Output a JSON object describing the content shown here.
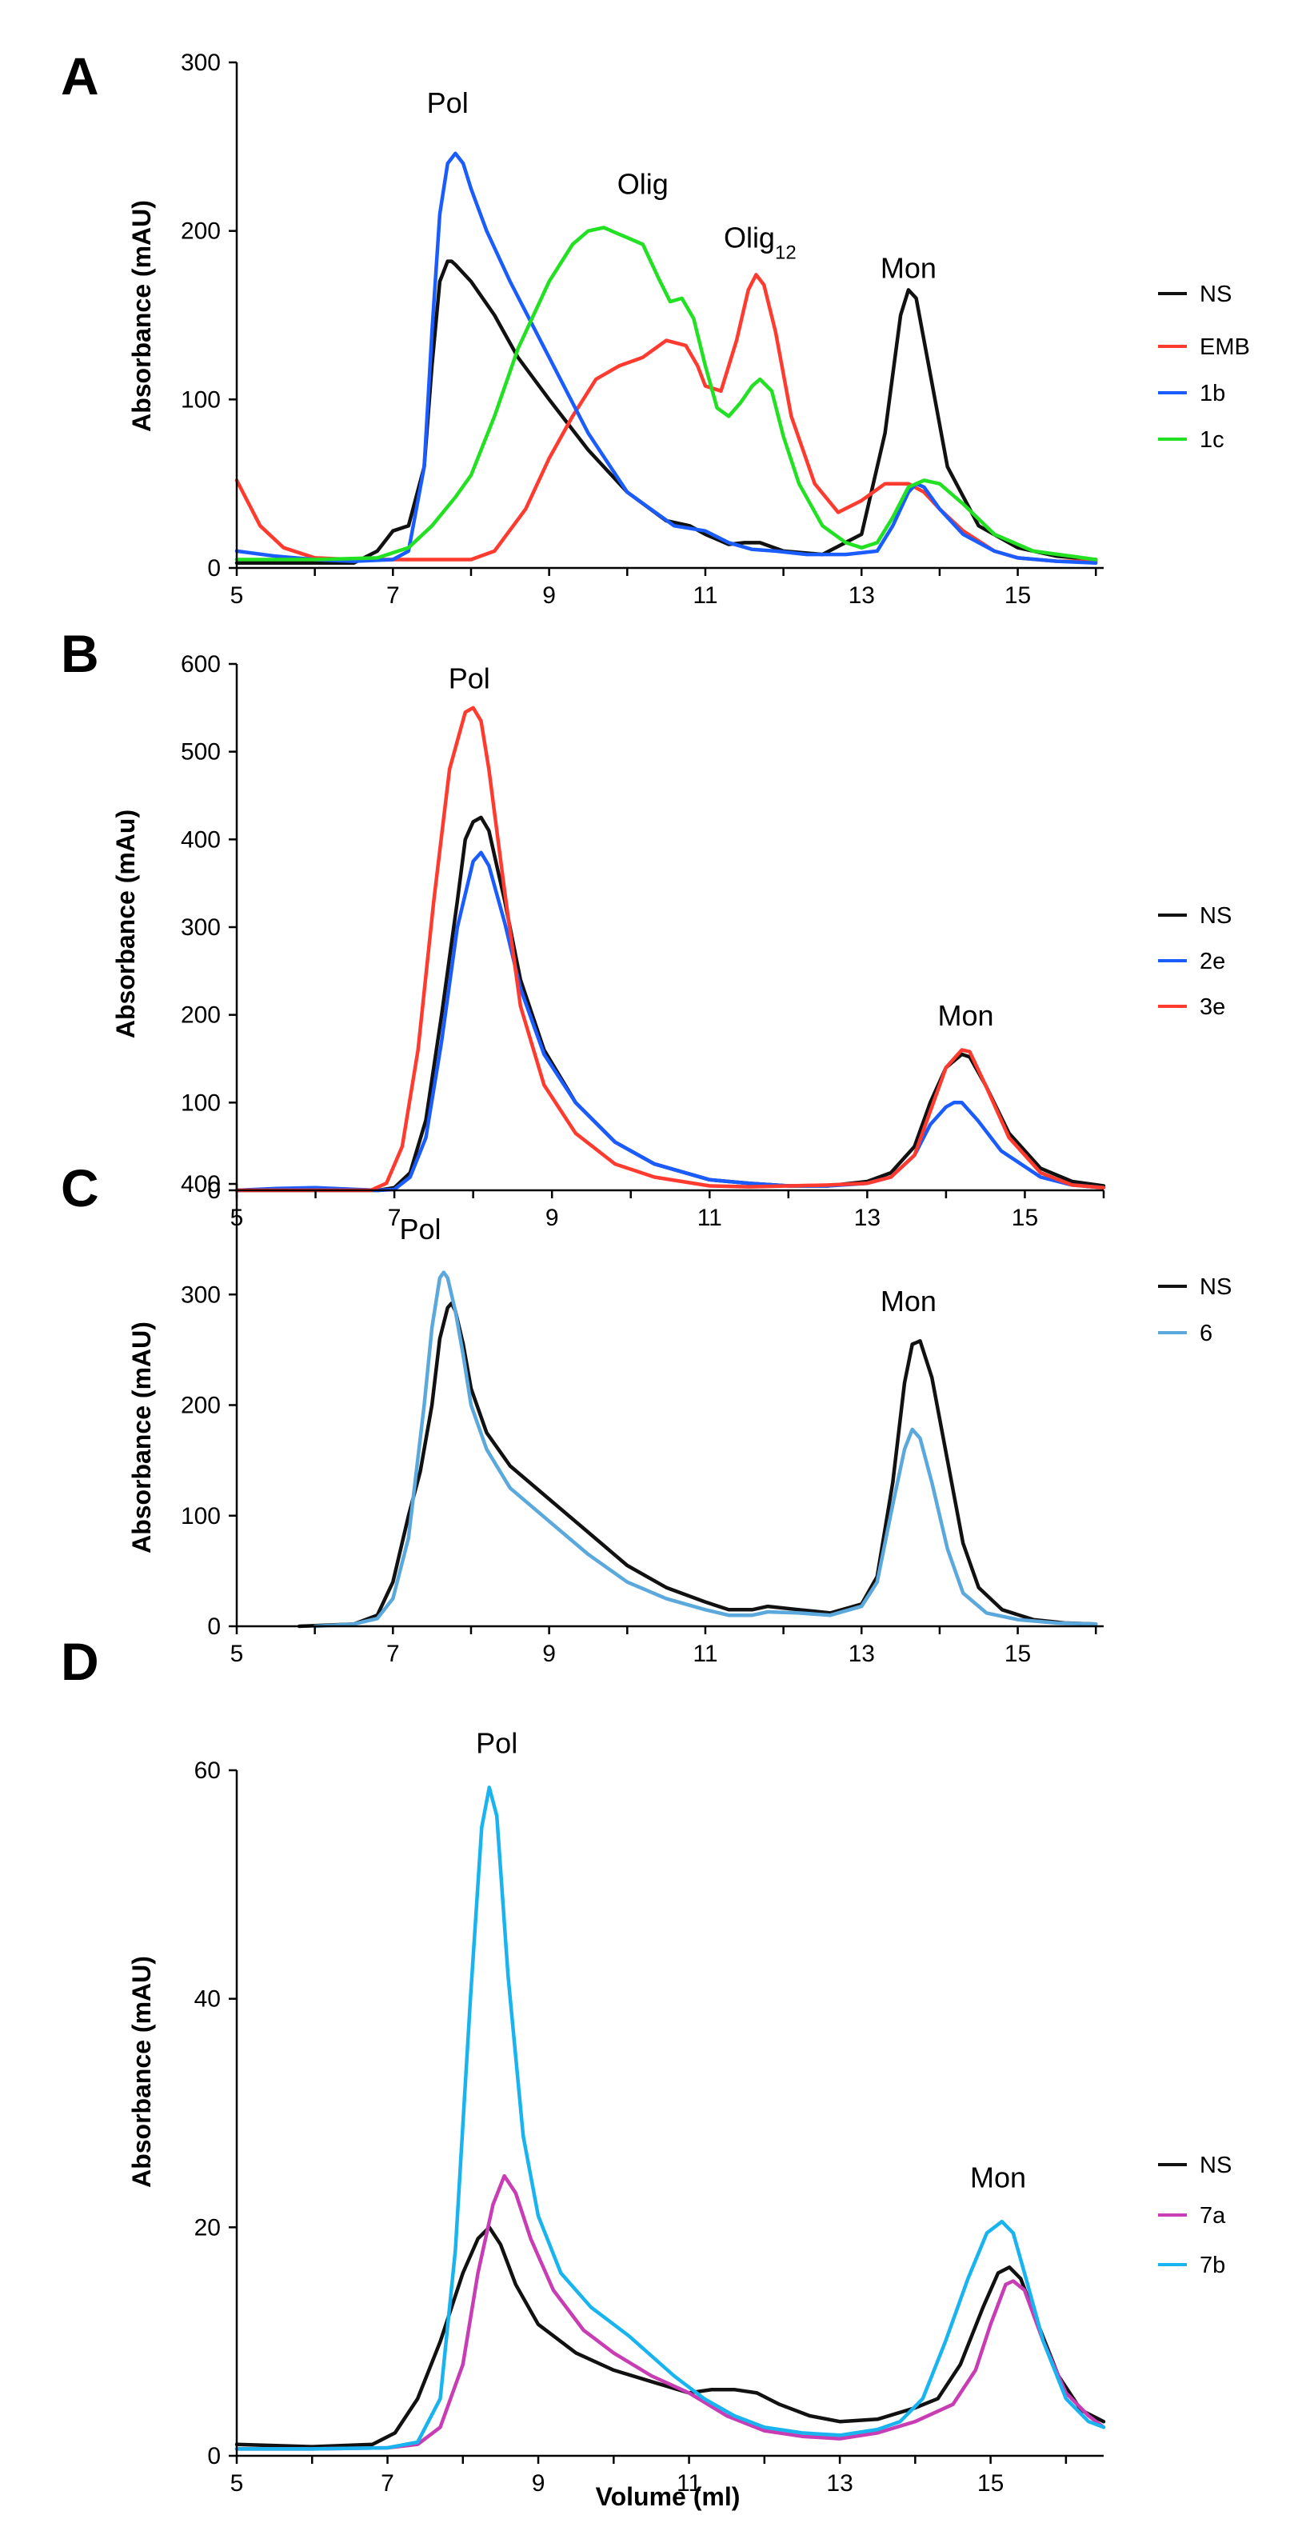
{
  "figure": {
    "xlabel": "Volume (ml)"
  },
  "colors": {
    "NS": "#111111",
    "EMB": "#ff3b2f",
    "1b": "#1b5cff",
    "1c": "#22e022",
    "2e": "#1b5cff",
    "3e": "#ff3b2f",
    "6": "#5ba8dc",
    "7a": "#c83cb4",
    "7b": "#19b4f0"
  },
  "chart_data": [
    {
      "panel": "A",
      "type": "line",
      "ylabel": "Absorbance (mAU)",
      "xlim": [
        5,
        16.1
      ],
      "ylim": [
        0,
        300
      ],
      "xticks": [
        5,
        7,
        9,
        11,
        13,
        15
      ],
      "yticks": [
        0,
        100,
        200,
        300
      ],
      "annotations": [
        {
          "text": "Pol",
          "x": 7.7,
          "y": 270
        },
        {
          "text": "Olig",
          "x": 10.2,
          "y": 222
        },
        {
          "text": "Olig",
          "sub": "12",
          "x": 11.7,
          "y": 190
        },
        {
          "text": "Mon",
          "x": 13.6,
          "y": 172
        }
      ],
      "series": [
        {
          "name": "NS",
          "x": [
            5,
            6,
            6.5,
            6.8,
            7.0,
            7.2,
            7.4,
            7.5,
            7.6,
            7.7,
            7.75,
            7.8,
            8.0,
            8.3,
            8.6,
            9.0,
            9.5,
            10.0,
            10.5,
            10.8,
            11.0,
            11.3,
            11.5,
            11.7,
            12.0,
            12.5,
            13.0,
            13.3,
            13.5,
            13.6,
            13.7,
            13.9,
            14.1,
            14.5,
            15,
            15.5,
            16
          ],
          "y": [
            3,
            3,
            3,
            10,
            22,
            25,
            60,
            120,
            170,
            182,
            182,
            180,
            170,
            150,
            125,
            100,
            70,
            45,
            28,
            25,
            20,
            14,
            15,
            15,
            10,
            8,
            20,
            80,
            150,
            165,
            160,
            110,
            60,
            25,
            12,
            7,
            5
          ]
        },
        {
          "name": "EMB",
          "x": [
            5,
            5.3,
            5.6,
            6,
            6.5,
            7,
            7.5,
            8,
            8.3,
            8.7,
            9,
            9.3,
            9.6,
            9.9,
            10.2,
            10.5,
            10.75,
            10.9,
            11.0,
            11.2,
            11.4,
            11.55,
            11.65,
            11.75,
            11.9,
            12.1,
            12.4,
            12.7,
            13,
            13.3,
            13.6,
            13.8,
            14,
            14.3,
            14.7,
            15,
            15.5,
            16
          ],
          "y": [
            52,
            25,
            12,
            6,
            5,
            5,
            5,
            5,
            10,
            35,
            65,
            90,
            112,
            120,
            125,
            135,
            132,
            120,
            108,
            105,
            135,
            165,
            174,
            168,
            140,
            90,
            50,
            33,
            40,
            50,
            50,
            45,
            35,
            22,
            10,
            6,
            4,
            4
          ]
        },
        {
          "name": "1b",
          "x": [
            5,
            5.5,
            6,
            6.5,
            7,
            7.2,
            7.4,
            7.5,
            7.6,
            7.7,
            7.8,
            7.9,
            8.0,
            8.2,
            8.5,
            9,
            9.5,
            10,
            10.3,
            10.6,
            11,
            11.3,
            11.6,
            11.9,
            12.3,
            12.8,
            13.2,
            13.4,
            13.6,
            13.7,
            13.8,
            14,
            14.3,
            14.7,
            15,
            15.5,
            16
          ],
          "y": [
            10,
            7,
            5,
            4,
            5,
            10,
            60,
            140,
            210,
            240,
            246,
            240,
            225,
            200,
            170,
            125,
            80,
            45,
            35,
            25,
            22,
            15,
            11,
            10,
            8,
            8,
            10,
            25,
            45,
            50,
            48,
            35,
            20,
            10,
            6,
            4,
            3
          ]
        },
        {
          "name": "1c",
          "x": [
            5,
            6,
            6.8,
            7.2,
            7.5,
            7.8,
            8.0,
            8.3,
            8.6,
            9.0,
            9.3,
            9.5,
            9.7,
            9.9,
            10.0,
            10.2,
            10.4,
            10.55,
            10.7,
            10.85,
            11.0,
            11.15,
            11.3,
            11.45,
            11.6,
            11.7,
            11.85,
            12.0,
            12.2,
            12.5,
            12.8,
            13.0,
            13.2,
            13.4,
            13.6,
            13.8,
            14.0,
            14.3,
            14.7,
            15.2,
            16
          ],
          "y": [
            5,
            5,
            6,
            12,
            25,
            42,
            55,
            90,
            130,
            170,
            192,
            200,
            202,
            198,
            196,
            192,
            172,
            158,
            160,
            148,
            120,
            95,
            90,
            98,
            108,
            112,
            105,
            78,
            50,
            25,
            15,
            12,
            15,
            30,
            48,
            52,
            50,
            38,
            20,
            10,
            5
          ]
        }
      ]
    },
    {
      "panel": "B",
      "type": "line",
      "ylabel": "Absorbance (mAu)",
      "xlim": [
        5,
        16
      ],
      "ylim": [
        0,
        600
      ],
      "xticks": [
        5,
        7,
        9,
        11,
        13,
        15
      ],
      "yticks": [
        0,
        100,
        200,
        300,
        400,
        500,
        600
      ],
      "annotations": [
        {
          "text": "Pol",
          "x": 7.95,
          "y": 572
        },
        {
          "text": "Mon",
          "x": 14.25,
          "y": 188
        }
      ],
      "series": [
        {
          "name": "NS",
          "x": [
            5,
            6.8,
            7.0,
            7.2,
            7.4,
            7.6,
            7.8,
            7.9,
            8.0,
            8.1,
            8.2,
            8.4,
            8.6,
            8.9,
            9.3,
            9.8,
            10.3,
            11,
            11.5,
            12,
            12.5,
            13,
            13.3,
            13.6,
            13.8,
            14.0,
            14.2,
            14.3,
            14.5,
            14.8,
            15.2,
            15.6,
            16
          ],
          "y": [
            0,
            0,
            3,
            20,
            80,
            200,
            330,
            400,
            420,
            425,
            410,
            330,
            240,
            160,
            100,
            55,
            30,
            12,
            8,
            5,
            5,
            10,
            20,
            50,
            100,
            140,
            155,
            152,
            120,
            65,
            25,
            10,
            5
          ]
        },
        {
          "name": "2e",
          "x": [
            5,
            5.5,
            6,
            6.5,
            6.8,
            7.0,
            7.2,
            7.4,
            7.6,
            7.8,
            8.0,
            8.1,
            8.2,
            8.4,
            8.6,
            8.9,
            9.3,
            9.8,
            10.3,
            11,
            11.5,
            12,
            12.5,
            13,
            13.3,
            13.6,
            13.8,
            14.0,
            14.1,
            14.2,
            14.4,
            14.7,
            15.2,
            15.6,
            16
          ],
          "y": [
            0,
            2,
            3,
            1,
            0,
            1,
            15,
            60,
            170,
            300,
            375,
            385,
            370,
            305,
            230,
            155,
            100,
            55,
            30,
            12,
            8,
            5,
            5,
            8,
            15,
            40,
            75,
            95,
            100,
            100,
            80,
            45,
            15,
            6,
            3
          ]
        },
        {
          "name": "3e",
          "x": [
            5,
            6.7,
            6.9,
            7.1,
            7.3,
            7.5,
            7.7,
            7.9,
            8.0,
            8.1,
            8.2,
            8.4,
            8.6,
            8.9,
            9.3,
            9.8,
            10.3,
            11,
            11.5,
            12,
            12.5,
            13,
            13.3,
            13.6,
            13.8,
            14.0,
            14.2,
            14.3,
            14.5,
            14.8,
            15.2,
            15.6,
            16
          ],
          "y": [
            0,
            0,
            8,
            50,
            160,
            330,
            480,
            545,
            550,
            535,
            480,
            340,
            210,
            120,
            65,
            30,
            15,
            5,
            4,
            5,
            6,
            8,
            15,
            40,
            90,
            140,
            160,
            158,
            120,
            60,
            20,
            6,
            3
          ]
        }
      ]
    },
    {
      "panel": "C",
      "type": "line",
      "ylabel": "Absorbance (mAU)",
      "xlim": [
        5,
        16.1
      ],
      "ylim": [
        0,
        400
      ],
      "xticks": [
        5,
        7,
        9,
        11,
        13,
        15
      ],
      "yticks": [
        0,
        100,
        200,
        300,
        400
      ],
      "annotations": [
        {
          "text": "Pol",
          "x": 7.35,
          "y": 350
        },
        {
          "text": "Mon",
          "x": 13.6,
          "y": 285
        }
      ],
      "series": [
        {
          "name": "NS",
          "x": [
            5.8,
            6.5,
            6.8,
            7.0,
            7.2,
            7.35,
            7.5,
            7.6,
            7.7,
            7.75,
            7.8,
            7.9,
            8.0,
            8.2,
            8.5,
            9,
            9.5,
            10,
            10.5,
            11,
            11.3,
            11.6,
            11.8,
            12.2,
            12.6,
            13,
            13.2,
            13.4,
            13.55,
            13.65,
            13.75,
            13.9,
            14.1,
            14.3,
            14.5,
            14.8,
            15.2,
            15.6,
            16
          ],
          "y": [
            0,
            2,
            10,
            40,
            100,
            140,
            200,
            260,
            288,
            292,
            285,
            255,
            215,
            175,
            145,
            115,
            85,
            55,
            35,
            22,
            15,
            15,
            18,
            15,
            12,
            20,
            45,
            130,
            220,
            255,
            258,
            225,
            150,
            75,
            35,
            15,
            6,
            3,
            2
          ]
        },
        {
          "name": "6",
          "x": [
            6,
            6.5,
            6.8,
            7.0,
            7.2,
            7.4,
            7.5,
            7.6,
            7.65,
            7.7,
            7.8,
            7.9,
            8.0,
            8.2,
            8.5,
            9,
            9.5,
            10,
            10.5,
            11,
            11.3,
            11.6,
            11.8,
            12.2,
            12.6,
            13,
            13.2,
            13.4,
            13.55,
            13.65,
            13.75,
            13.9,
            14.1,
            14.3,
            14.6,
            15,
            15.5,
            16
          ],
          "y": [
            0,
            2,
            7,
            25,
            80,
            200,
            270,
            315,
            320,
            315,
            285,
            245,
            200,
            160,
            125,
            95,
            65,
            40,
            25,
            15,
            10,
            10,
            13,
            12,
            10,
            18,
            40,
            110,
            160,
            178,
            170,
            130,
            70,
            30,
            12,
            6,
            3,
            2
          ]
        }
      ]
    },
    {
      "panel": "D",
      "type": "line",
      "ylabel": "Absorbance (mAU)",
      "xlim": [
        5,
        16.5
      ],
      "ylim": [
        0,
        60
      ],
      "xticks": [
        5,
        7,
        9,
        11,
        13,
        15
      ],
      "yticks": [
        0,
        20,
        40,
        60
      ],
      "xlabel": "Volume (ml)",
      "annotations": [
        {
          "text": "Pol",
          "x": 8.45,
          "y": 61.5
        },
        {
          "text": "Mon",
          "x": 15.1,
          "y": 23.5
        }
      ],
      "series": [
        {
          "name": "NS",
          "x": [
            5,
            6,
            6.8,
            7.1,
            7.4,
            7.7,
            8.0,
            8.2,
            8.35,
            8.5,
            8.7,
            9,
            9.5,
            10,
            10.5,
            11,
            11.3,
            11.6,
            11.9,
            12.2,
            12.6,
            13,
            13.5,
            14,
            14.3,
            14.6,
            14.9,
            15.1,
            15.25,
            15.4,
            15.6,
            15.9,
            16.2,
            16.5
          ],
          "y": [
            1,
            0.8,
            1,
            2,
            5,
            10,
            16,
            19,
            20,
            18.5,
            15,
            11.5,
            9,
            7.5,
            6.5,
            5.5,
            5.8,
            5.8,
            5.5,
            4.5,
            3.5,
            3,
            3.2,
            4.2,
            5,
            8,
            13,
            16,
            16.5,
            15.5,
            12,
            7,
            4,
            3
          ]
        },
        {
          "name": "7a",
          "x": [
            5,
            6,
            7,
            7.4,
            7.7,
            8.0,
            8.2,
            8.4,
            8.55,
            8.7,
            8.9,
            9.2,
            9.6,
            10,
            10.5,
            11,
            11.5,
            12,
            12.5,
            13,
            13.5,
            14,
            14.5,
            14.8,
            15.0,
            15.2,
            15.3,
            15.45,
            15.7,
            16,
            16.3,
            16.5
          ],
          "y": [
            0.6,
            0.6,
            0.7,
            1,
            2.5,
            8,
            16,
            22,
            24.5,
            23,
            19,
            14.5,
            11,
            9,
            7,
            5.5,
            3.5,
            2.2,
            1.7,
            1.5,
            2,
            3,
            4.5,
            7.5,
            11.5,
            15,
            15.3,
            14.5,
            10,
            5.5,
            3.5,
            2.5
          ]
        },
        {
          "name": "7b",
          "x": [
            5,
            6,
            7,
            7.4,
            7.7,
            7.9,
            8.1,
            8.25,
            8.35,
            8.45,
            8.6,
            8.8,
            9.0,
            9.3,
            9.7,
            10.2,
            10.8,
            11.2,
            11.6,
            12,
            12.5,
            13,
            13.5,
            13.8,
            14.1,
            14.4,
            14.7,
            14.95,
            15.15,
            15.3,
            15.45,
            15.7,
            16,
            16.3,
            16.5
          ],
          "y": [
            0.6,
            0.6,
            0.7,
            1.2,
            5,
            18,
            40,
            55,
            58.5,
            56,
            42,
            28,
            21,
            16,
            13,
            10.5,
            7,
            5,
            3.5,
            2.5,
            2,
            1.8,
            2.3,
            3,
            5,
            10,
            15.5,
            19.5,
            20.5,
            19.5,
            16,
            10,
            5,
            3,
            2.5
          ]
        }
      ]
    }
  ],
  "legends": [
    {
      "panel": "A",
      "items": [
        "NS",
        "EMB",
        "1b",
        "1c"
      ]
    },
    {
      "panel": "B",
      "items": [
        "NS",
        "2e",
        "3e"
      ]
    },
    {
      "panel": "C",
      "items": [
        "NS",
        "6"
      ]
    },
    {
      "panel": "D",
      "items": [
        "NS",
        "7a",
        "7b"
      ]
    }
  ]
}
